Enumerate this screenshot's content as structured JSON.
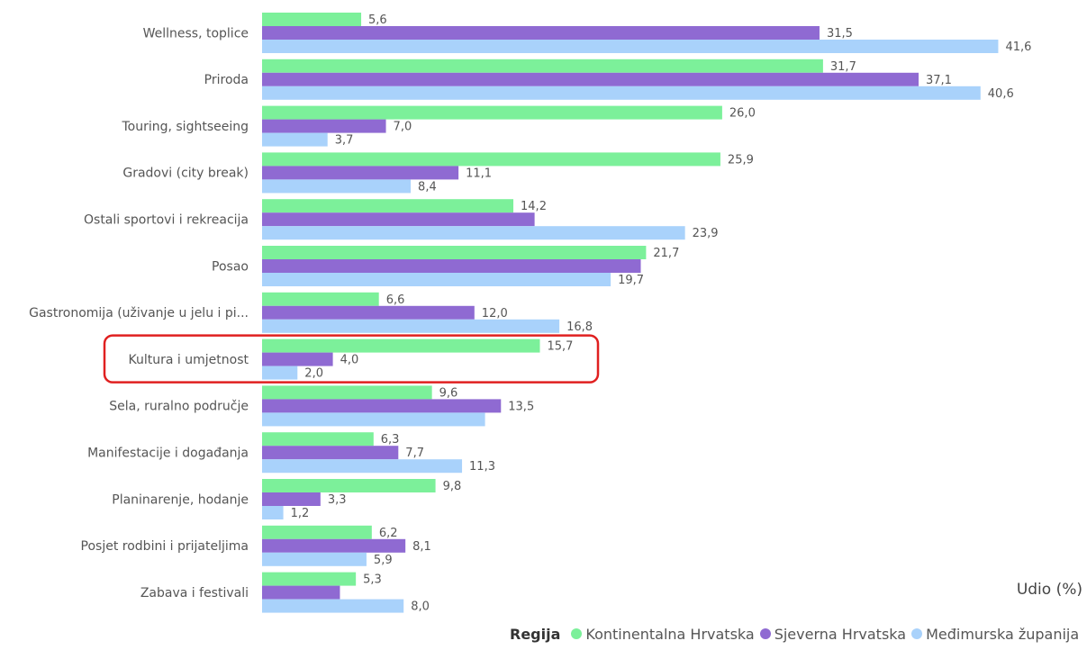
{
  "chart_data": {
    "type": "bar",
    "orientation": "horizontal",
    "categories": [
      "Wellness, toplice",
      "Priroda",
      "Touring, sightseeing",
      "Gradovi (city break)",
      "Ostali sportovi i rekreacija",
      "Posao",
      "Gastronomija (uživanje u jelu i pi...",
      "Kultura i umjetnost",
      "Sela, ruralno područje",
      "Manifestacije i događanja",
      "Planinarenje, hodanje",
      "Posjet rodbini i prijateljima",
      "Zabava i festivali"
    ],
    "series": [
      {
        "name": "Kontinentalna Hrvatska",
        "color": "#7cf09a",
        "values": [
          5.6,
          31.7,
          26.0,
          25.9,
          14.2,
          21.7,
          6.6,
          15.7,
          9.6,
          6.3,
          9.8,
          6.2,
          5.3
        ],
        "labels": [
          "5,6",
          "31,7",
          "26,0",
          "25,9",
          "14,2",
          "21,7",
          "6,6",
          "15,7",
          "9,6",
          "6,3",
          "9,8",
          "6,2",
          "5,3"
        ]
      },
      {
        "name": "Sjeverna Hrvatska",
        "color": "#8f6ad2",
        "values": [
          31.5,
          37.1,
          7.0,
          11.1,
          15.4,
          21.4,
          12.0,
          4.0,
          13.5,
          7.7,
          3.3,
          8.1,
          4.4
        ],
        "labels": [
          "31,5",
          "37,1",
          "7,0",
          "11,1",
          "",
          "",
          "12,0",
          "4,0",
          "13,5",
          "7,7",
          "3,3",
          "8,1",
          ""
        ]
      },
      {
        "name": "Međimurska županija",
        "color": "#a9d2fb",
        "values": [
          41.6,
          40.6,
          3.7,
          8.4,
          23.9,
          19.7,
          16.8,
          2.0,
          12.6,
          11.3,
          1.2,
          5.9,
          8.0
        ],
        "labels": [
          "41,6",
          "40,6",
          "3,7",
          "8,4",
          "23,9",
          "19,7",
          "16,8",
          "2,0",
          "",
          "11,3",
          "1,2",
          "5,9",
          "8,0"
        ]
      }
    ],
    "xlim": [
      0,
      45
    ],
    "xlabel": "Udio (%)",
    "legend_title": "Regija",
    "legend_position": "bottom-right",
    "highlight_category": "Kultura i umjetnost",
    "highlight_color": "#e02020",
    "grid": false
  }
}
